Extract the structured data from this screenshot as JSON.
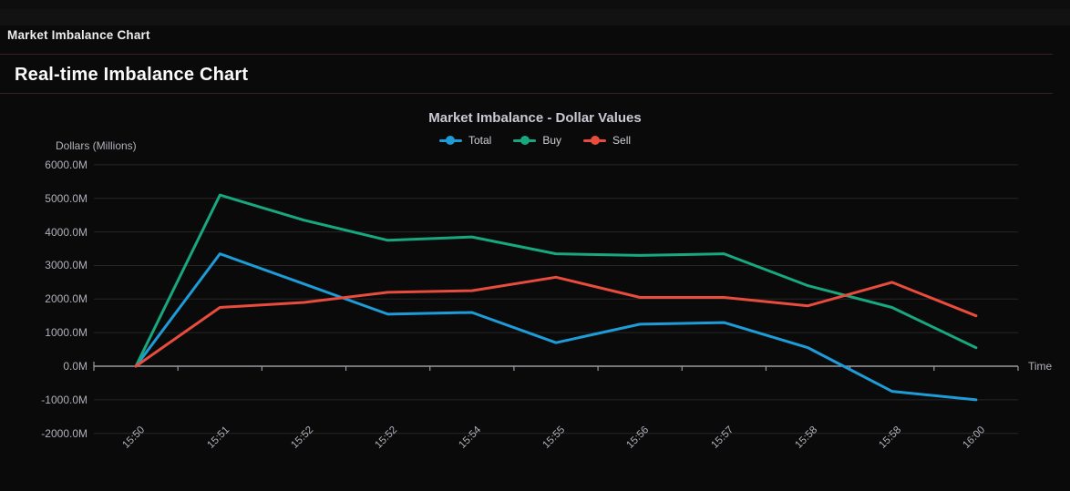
{
  "window": {
    "app_title": "Market Imbalance Chart"
  },
  "page": {
    "heading": "Real-time Imbalance Chart"
  },
  "chart": {
    "title": "Market Imbalance - Dollar Values",
    "y_axis_title": "Dollars (Millions)",
    "x_axis_title": "Time",
    "y_tick_labels": [
      "6000.0M",
      "5000.0M",
      "4000.0M",
      "3000.0M",
      "2000.0M",
      "1000.0M",
      "0.0M",
      "-1000.0M",
      "-2000.0M"
    ],
    "colors": {
      "total": "#1e9cd8",
      "buy": "#18a87f",
      "sell": "#e84c3d",
      "grid": "#262626",
      "axis": "#9a9aa0",
      "background": "#0a0a0b"
    }
  },
  "chart_data": {
    "type": "line",
    "title": "Market Imbalance - Dollar Values",
    "xlabel": "Time",
    "ylabel": "Dollars (Millions)",
    "categories": [
      "15:50",
      "15:51",
      "15:52",
      "15:52",
      "15:54",
      "15:55",
      "15:56",
      "15:57",
      "15:58",
      "15:58",
      "16:00"
    ],
    "series": [
      {
        "name": "Total",
        "color": "#1e9cd8",
        "values": [
          0,
          3350,
          2450,
          1550,
          1600,
          700,
          1250,
          1300,
          550,
          -750,
          -1000
        ]
      },
      {
        "name": "Buy",
        "color": "#18a87f",
        "values": [
          0,
          5100,
          4350,
          3750,
          3850,
          3350,
          3300,
          3350,
          2400,
          1750,
          550
        ]
      },
      {
        "name": "Sell",
        "color": "#e84c3d",
        "values": [
          0,
          1750,
          1900,
          2200,
          2250,
          2650,
          2050,
          2050,
          1800,
          2500,
          1500
        ]
      }
    ],
    "ylim": [
      -2000,
      6000
    ],
    "y_tick_step": 1000,
    "grid": true,
    "legend_position": "top-center",
    "x_label_rotation": -45
  }
}
